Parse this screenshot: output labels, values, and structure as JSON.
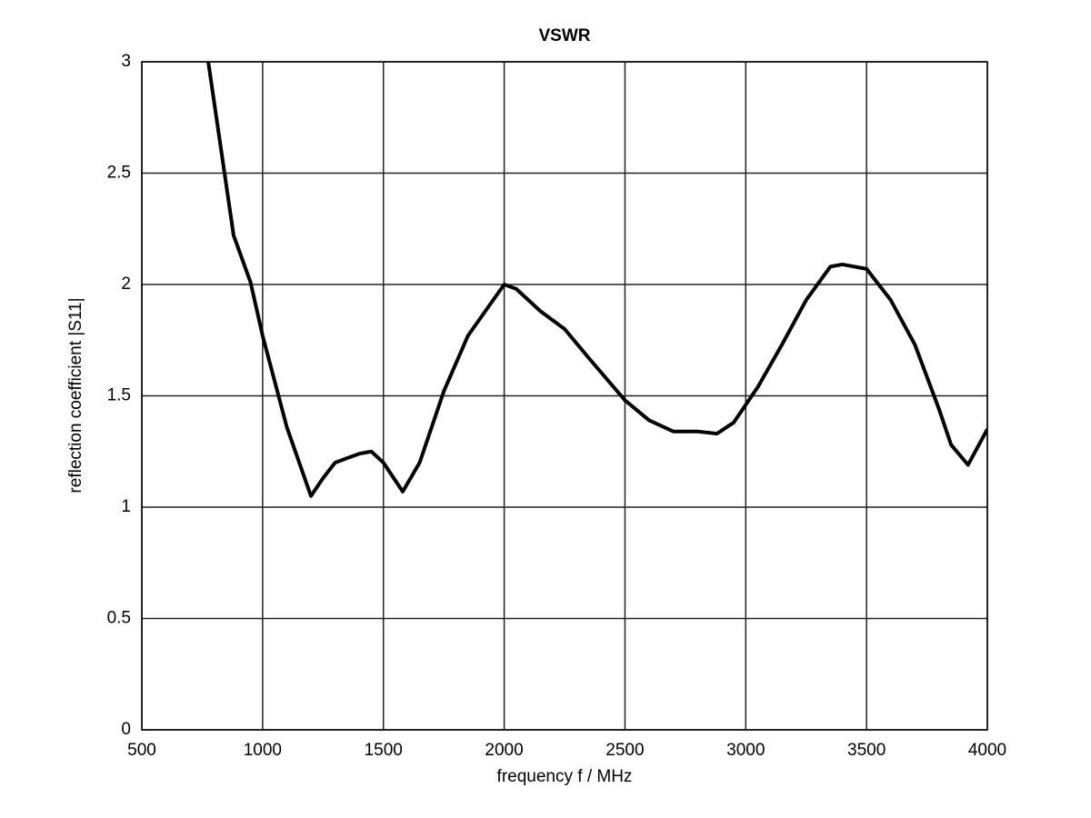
{
  "chart_data": {
    "type": "line",
    "title": "VSWR",
    "x_label": "frequency f / MHz",
    "y_label": "reflection coefficient |S11|",
    "series": [
      {
        "color": "#000000",
        "x": [
          775,
          880,
          950,
          1000,
          1100,
          1200,
          1250,
          1300,
          1400,
          1450,
          1500,
          1580,
          1650,
          1750,
          1850,
          2000,
          2050,
          2150,
          2250,
          2350,
          2500,
          2600,
          2700,
          2800,
          2880,
          2950,
          3050,
          3150,
          3250,
          3350,
          3400,
          3500,
          3600,
          3700,
          3800,
          3850,
          3920,
          4000
        ],
        "values": [
          3,
          2.22,
          2.01,
          1.77,
          1.36,
          1.05,
          1.13,
          1.2,
          1.24,
          1.25,
          1.2,
          1.07,
          1.2,
          1.52,
          1.77,
          2.0,
          1.98,
          1.88,
          1.8,
          1.67,
          1.48,
          1.39,
          1.34,
          1.34,
          1.33,
          1.38,
          1.54,
          1.73,
          1.93,
          2.08,
          2.09,
          2.07,
          1.93,
          1.73,
          1.44,
          1.28,
          1.19,
          1.35
        ]
      }
    ],
    "xlim": [
      500,
      4000
    ],
    "xticks": [
      500,
      1000,
      1500,
      2000,
      2500,
      3000,
      3500,
      4000
    ],
    "ylim": [
      0,
      3
    ],
    "yticks": [
      0,
      0.5,
      1,
      1.5,
      2,
      2.5,
      3
    ],
    "grid": true
  }
}
